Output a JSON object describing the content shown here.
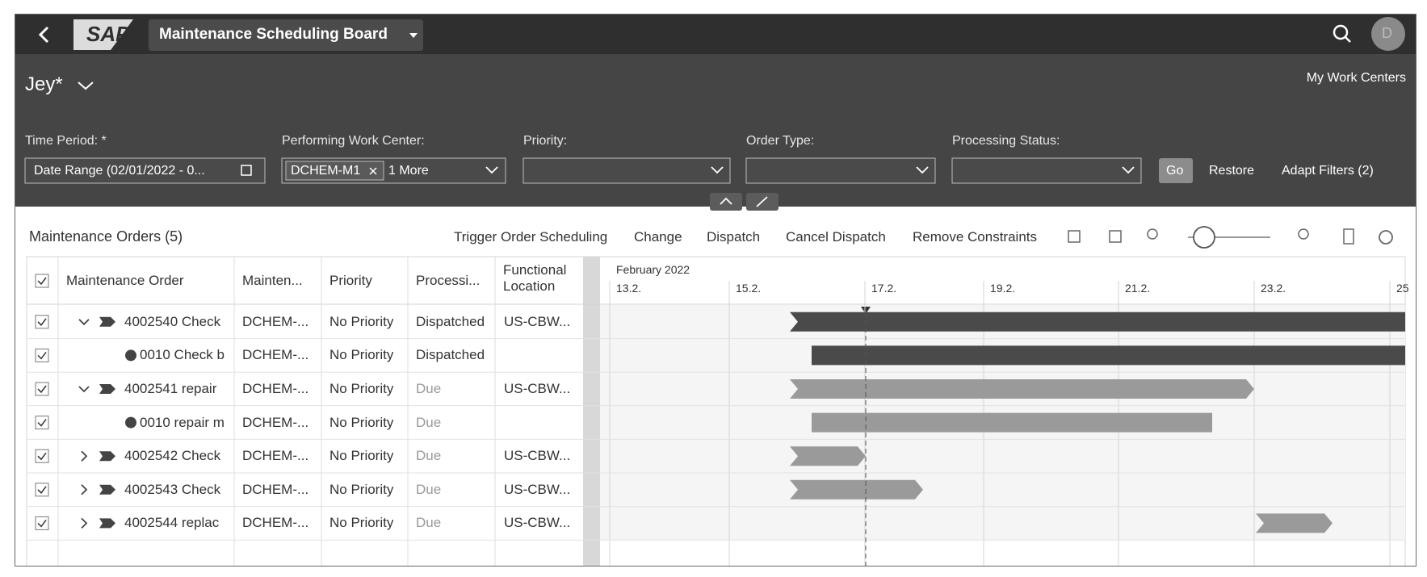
{
  "shell": {
    "logo": "SAP",
    "title": "Maintenance Scheduling Board",
    "avatar": "D"
  },
  "header": {
    "variant": "Jey*",
    "my_work_centers": "My Work Centers"
  },
  "filters": [
    {
      "label": "Time Period: *",
      "value": "Date Range (02/01/2022 - 0..."
    },
    {
      "label": "Performing Work Center:",
      "token": "DCHEM-M1",
      "value": "1 More"
    },
    {
      "label": "Priority:"
    },
    {
      "label": "Order Type:"
    },
    {
      "label": "Processing Status:"
    }
  ],
  "filter_buttons": {
    "go": "Go",
    "restore": "Restore",
    "adapt": "Adapt Filters (2)"
  },
  "table": {
    "title": "Maintenance Orders (5)",
    "toolbar": [
      "Trigger Order Scheduling",
      "Change",
      "Dispatch",
      "Cancel Dispatch",
      "Remove Constraints"
    ],
    "columns": [
      "Maintenance Order",
      "Mainten...",
      "Priority",
      "Processi...",
      "Functional Location"
    ],
    "rows": [
      {
        "order": "4002540 Check",
        "work_center": "DCHEM-...",
        "priority": "No Priority",
        "status": "Dispatched",
        "location": "US-CBW..."
      },
      {
        "order": "0010 Check b",
        "work_center": "DCHEM-...",
        "priority": "No Priority",
        "status": "Dispatched"
      },
      {
        "order": "4002541 repair",
        "work_center": "DCHEM-...",
        "priority": "No Priority",
        "status": "Due",
        "location": "US-CBW..."
      },
      {
        "order": "0010 repair m",
        "work_center": "DCHEM-...",
        "priority": "No Priority",
        "status": "Due"
      },
      {
        "order": "4002542 Check",
        "work_center": "DCHEM-...",
        "priority": "No Priority",
        "status": "Due",
        "location": "US-CBW..."
      },
      {
        "order": "4002543 Check",
        "work_center": "DCHEM-...",
        "priority": "No Priority",
        "status": "Due",
        "location": "US-CBW..."
      },
      {
        "order": "4002544 replac",
        "work_center": "DCHEM-...",
        "priority": "No Priority",
        "status": "Due",
        "location": "US-CBW..."
      }
    ]
  },
  "gantt": {
    "month": "February 2022",
    "dates": [
      "13.2.",
      "15.2.",
      "17.2.",
      "19.2.",
      "21.2.",
      "23.2.",
      "25"
    ]
  }
}
